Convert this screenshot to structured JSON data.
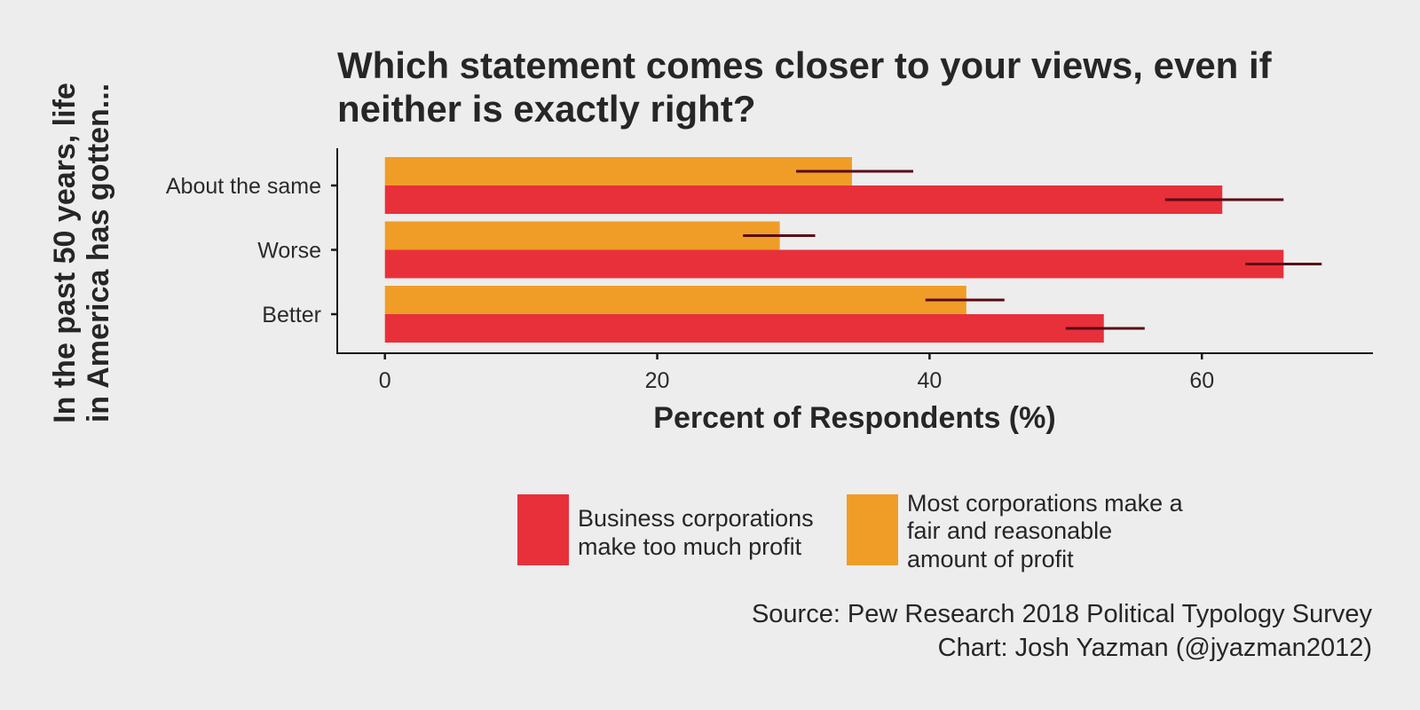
{
  "chart_data": {
    "type": "bar",
    "orientation": "horizontal",
    "title": "Which statement comes closer to your views, even if neither is exactly right?",
    "title_lines": [
      "Which statement comes closer to your views, even if",
      "neither is exactly right?"
    ],
    "xlabel": "Percent of Respondents (%)",
    "ylabel": "In the past 50 years, life in America has gotten...",
    "ylabel_lines": [
      "In the past 50 years, life",
      "in America has gotten..."
    ],
    "categories": [
      "About the same",
      "Worse",
      "Better"
    ],
    "xlim": [
      -3.5,
      72.5
    ],
    "xticks": [
      0,
      20,
      40,
      60
    ],
    "series": [
      {
        "name": "Business corporations make too much profit",
        "name_lines": [
          "Business corporations",
          "make too much profit"
        ],
        "color": "#E8303A",
        "values": [
          61.5,
          66.0,
          52.8
        ],
        "error_low": [
          57.3,
          63.2,
          50.0
        ],
        "error_high": [
          66.0,
          68.8,
          55.8
        ]
      },
      {
        "name": "Most corporations make a fair and reasonable amount of profit",
        "name_lines": [
          "Most corporations make a",
          "fair and reasonable",
          "amount of profit"
        ],
        "color": "#EF9D27",
        "values": [
          34.3,
          29.0,
          42.7
        ],
        "error_low": [
          30.2,
          26.3,
          39.7
        ],
        "error_high": [
          38.8,
          31.6,
          45.5
        ]
      }
    ],
    "error_bar_color": "#5A0A14",
    "grid": false,
    "legend_position": "bottom"
  },
  "caption": {
    "source": "Source: Pew Research 2018 Political Typology Survey",
    "credit": "Chart: Josh Yazman (@jyazman2012)"
  },
  "colors": {
    "background": "#EDEDED",
    "text": "#262626",
    "axis": "#1a1a1a"
  }
}
